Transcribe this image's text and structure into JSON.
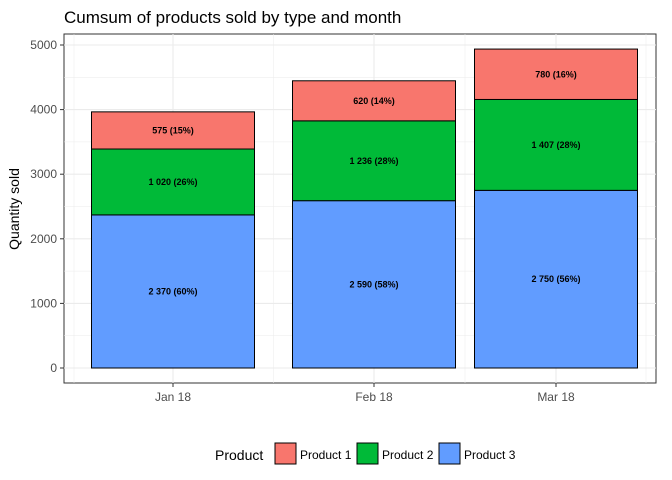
{
  "chart_data": {
    "type": "bar",
    "stacked": true,
    "title": "Cumsum of products sold by type and month",
    "xlabel": "",
    "ylabel": "Quantity sold",
    "categories": [
      "Jan 18",
      "Feb 18",
      "Mar 18"
    ],
    "ylim": [
      0,
      5000
    ],
    "yticks": [
      0,
      1000,
      2000,
      3000,
      4000,
      5000
    ],
    "ytick_labels": [
      "0",
      "1000",
      "2000",
      "3000",
      "4000",
      "5000"
    ],
    "grid": true,
    "legend_title": "Product",
    "legend_position": "bottom",
    "series": [
      {
        "name": "Product 3",
        "color": "#619CFF",
        "values": [
          2370,
          2590,
          2750
        ],
        "labels": [
          "2 370 (60%)",
          "2 590 (58%)",
          "2 750 (56%)"
        ]
      },
      {
        "name": "Product 2",
        "color": "#00BA38",
        "values": [
          1020,
          1236,
          1407
        ],
        "labels": [
          "1 020 (26%)",
          "1 236 (28%)",
          "1 407 (28%)"
        ]
      },
      {
        "name": "Product 1",
        "color": "#F8766D",
        "values": [
          575,
          620,
          780
        ],
        "labels": [
          "575 (15%)",
          "620 (14%)",
          "780 (16%)"
        ]
      }
    ],
    "legend_order": [
      "Product 1",
      "Product 2",
      "Product 3"
    ]
  }
}
